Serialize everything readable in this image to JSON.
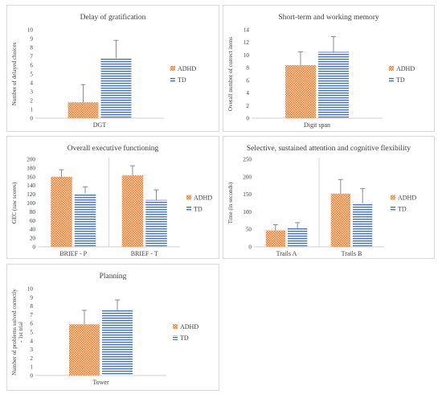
{
  "legend_labels": {
    "adhd": "ADHD",
    "td": "TD"
  },
  "colors": {
    "adhd": "#ED7D31",
    "td": "#4472C4",
    "axis": "#bfbfbf",
    "text": "#404040",
    "error_bar": "#7f7f7f"
  },
  "chart_data": [
    {
      "type": "bar",
      "title": "Delay of gratification",
      "ylabel": "Number of delayed choices",
      "xlabel": "",
      "ylim": [
        0,
        10
      ],
      "yticks": [
        0,
        1,
        2,
        3,
        4,
        5,
        6,
        7,
        8,
        9,
        10
      ],
      "categories": [
        "DGT"
      ],
      "series": [
        {
          "name": "ADHD",
          "values": [
            1.8
          ],
          "error": [
            2.0
          ]
        },
        {
          "name": "TD",
          "values": [
            6.8
          ],
          "error": [
            2.0
          ]
        }
      ],
      "legend": "right",
      "grid": false
    },
    {
      "type": "bar",
      "title": "Short-term and working memory",
      "ylabel": "Overall number of correct items",
      "xlabel": "",
      "ylim": [
        0,
        14
      ],
      "yticks": [
        0,
        2,
        4,
        6,
        8,
        10,
        12,
        14
      ],
      "categories": [
        "Digit span"
      ],
      "series": [
        {
          "name": "ADHD",
          "values": [
            8.4
          ],
          "error": [
            2.1
          ]
        },
        {
          "name": "TD",
          "values": [
            10.5
          ],
          "error": [
            2.4
          ]
        }
      ],
      "legend": "right",
      "grid": false
    },
    {
      "type": "bar",
      "title": "Overall executive functioning",
      "ylabel": "GEC (raw scores)",
      "xlabel": "",
      "ylim": [
        0,
        200
      ],
      "yticks": [
        0,
        20,
        40,
        60,
        80,
        100,
        120,
        140,
        160,
        180,
        200
      ],
      "categories": [
        "BRIEF - P",
        "BRIEF - T"
      ],
      "series": [
        {
          "name": "ADHD",
          "values": [
            160,
            163
          ],
          "error": [
            16,
            22
          ]
        },
        {
          "name": "TD",
          "values": [
            122,
            107
          ],
          "error": [
            15,
            23
          ]
        }
      ],
      "legend": "right",
      "grid": false
    },
    {
      "type": "bar",
      "title": "Selective, sustained attention and cognitive flexibility",
      "ylabel": "Time (in seconds)",
      "xlabel": "",
      "ylim": [
        0,
        250
      ],
      "yticks": [
        0,
        50,
        100,
        150,
        200,
        250
      ],
      "categories": [
        "Trails A",
        "Trails B"
      ],
      "series": [
        {
          "name": "ADHD",
          "values": [
            47,
            152
          ],
          "error": [
            16,
            40
          ]
        },
        {
          "name": "TD",
          "values": [
            53,
            124
          ],
          "error": [
            16,
            42
          ]
        }
      ],
      "legend": "right",
      "grid": false
    },
    {
      "type": "bar",
      "title": "Planning",
      "ylabel": "Number of problems solved correctly - 1st trial",
      "xlabel": "",
      "ylim": [
        0,
        10
      ],
      "yticks": [
        0,
        1,
        2,
        3,
        4,
        5,
        6,
        7,
        8,
        9,
        10
      ],
      "categories": [
        "Tower"
      ],
      "series": [
        {
          "name": "ADHD",
          "values": [
            5.9
          ],
          "error": [
            1.6
          ]
        },
        {
          "name": "TD",
          "values": [
            7.5
          ],
          "error": [
            1.2
          ]
        }
      ],
      "legend": "right",
      "grid": false
    }
  ]
}
